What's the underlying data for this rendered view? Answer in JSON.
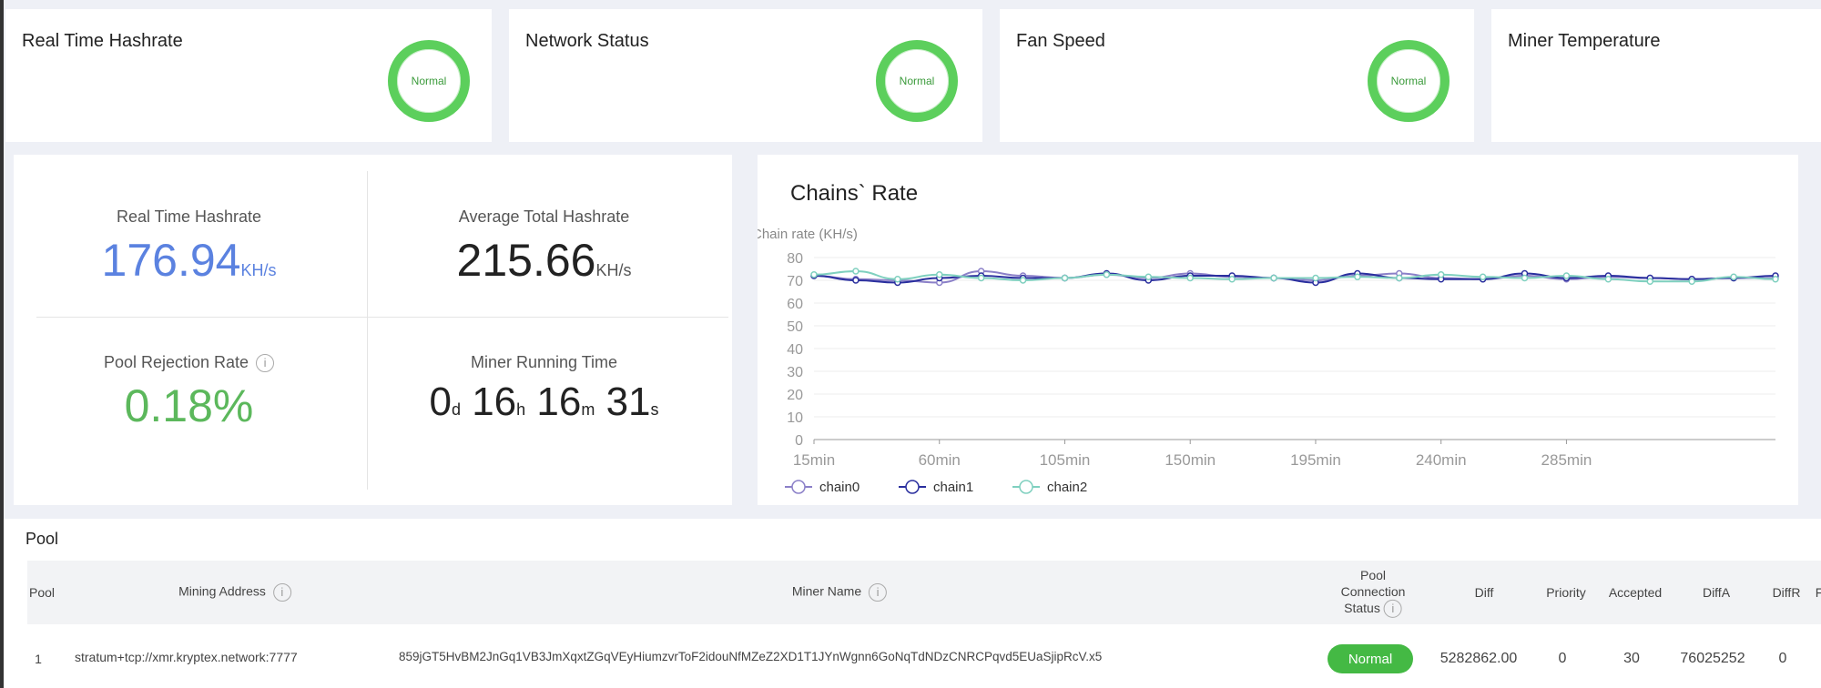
{
  "status_cards": [
    {
      "title": "Real Time Hashrate",
      "status": "Normal"
    },
    {
      "title": "Network Status",
      "status": "Normal"
    },
    {
      "title": "Fan Speed",
      "status": "Normal"
    },
    {
      "title": "Miner Temperature"
    }
  ],
  "stats": {
    "realtime": {
      "label": "Real Time Hashrate",
      "value": "176.94",
      "unit": "KH/s",
      "color": "#5b82e0"
    },
    "average": {
      "label": "Average Total Hashrate",
      "value": "215.66",
      "unit": "KH/s"
    },
    "rejection": {
      "label": "Pool Rejection Rate",
      "value": "0.18%",
      "color": "#5cb85c"
    },
    "running": {
      "label": "Miner Running Time",
      "d": "0",
      "d_unit": "d",
      "h": "16",
      "h_unit": "h",
      "m": "16",
      "m_unit": "m",
      "s": "31",
      "s_unit": "s"
    }
  },
  "chart_data": {
    "type": "line",
    "title": "Chains` Rate",
    "ylabel": "Chain rate (KH/s)",
    "ylim": [
      0,
      80
    ],
    "yticks": [
      0,
      10,
      20,
      30,
      40,
      50,
      60,
      70,
      80
    ],
    "x": [
      15,
      30,
      45,
      60,
      75,
      90,
      105,
      120,
      135,
      150,
      165,
      180,
      195,
      210,
      225,
      240,
      255,
      270,
      285,
      300,
      315,
      330,
      345,
      360
    ],
    "xtick_labels": [
      "15min",
      "60min",
      "105min",
      "150min",
      "195min",
      "240min",
      "285min"
    ],
    "grid": true,
    "legend": "bottom-left",
    "series": [
      {
        "name": "chain0",
        "color": "#8b80c8",
        "values": [
          72,
          70.5,
          70,
          69,
          74,
          72,
          71,
          72.5,
          71,
          73,
          71.5,
          71,
          70,
          72,
          73,
          71,
          70.5,
          72,
          70.5,
          71.5,
          71,
          70.5,
          71,
          71
        ]
      },
      {
        "name": "chain1",
        "color": "#2a2f9e",
        "values": [
          72,
          70,
          69,
          71,
          72,
          71,
          71,
          73,
          70,
          72,
          72,
          71,
          69,
          73,
          71,
          70.5,
          70.5,
          73,
          71,
          72,
          71,
          70.5,
          71,
          72
        ]
      },
      {
        "name": "chain2",
        "color": "#7fd0bf",
        "values": [
          72.5,
          74,
          70.5,
          72.5,
          71,
          70,
          71,
          72.5,
          71.5,
          71,
          70.5,
          71,
          71,
          71.5,
          71,
          72.5,
          71.5,
          71,
          72,
          70.5,
          69.5,
          69.5,
          71.5,
          70.5
        ]
      }
    ]
  },
  "pool": {
    "title": "Pool",
    "headers": {
      "pool": "Pool",
      "address": "Mining Address",
      "miner": "Miner Name",
      "status_1": "Pool",
      "status_2": "Connection",
      "status_3": "Status",
      "diff": "Diff",
      "priority": "Priority",
      "accepted": "Accepted",
      "diffa": "DiffA",
      "diffr": "DiffR",
      "cut": "F"
    },
    "info_icon": "i",
    "rows": [
      {
        "pool": "1",
        "address": "stratum+tcp://xmr.kryptex.network:7777",
        "miner": "859jGT5HvBM2JnGq1VB3JmXqxtZGqVEyHiumzvrToF2idouNfMZeZ2XD1T1JYnWgnn6GoNqTdNDzCNRCPqvd5EUaSjipRcV.x5",
        "status": "Normal",
        "diff": "5282862.00",
        "priority": "0",
        "accepted": "30",
        "diffa": "76025252",
        "diffr": "0"
      }
    ]
  }
}
